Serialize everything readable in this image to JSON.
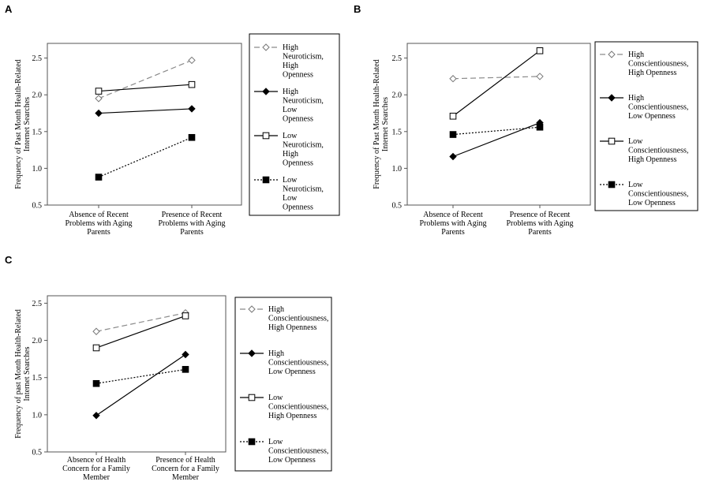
{
  "panels": [
    {
      "letter": "A",
      "y_label_lines": [
        "Frequency of Past Month Health-Related",
        "Internet Searches"
      ],
      "ylim": [
        0.5,
        2.7
      ],
      "ticks": [
        "0.5",
        "1.0",
        "1.5",
        "2.0",
        "2.5"
      ],
      "categories": [
        [
          "Absence of  Recent",
          "Problems with Aging",
          "Parents"
        ],
        [
          "Presence of  Recent",
          "Problems with Aging",
          "Parents"
        ]
      ],
      "series": [
        {
          "style": "hn_ho",
          "legend": [
            "High",
            "Neuroticism,",
            "High",
            "Openness"
          ],
          "values": [
            1.95,
            2.47
          ]
        },
        {
          "style": "hn_lo",
          "legend": [
            "High",
            "Neuroticism,",
            "Low",
            "Openness"
          ],
          "values": [
            1.75,
            1.81
          ]
        },
        {
          "style": "ln_ho",
          "legend": [
            "Low",
            "Neuroticism,",
            "High",
            "Openness"
          ],
          "values": [
            2.05,
            2.14
          ]
        },
        {
          "style": "ln_lo",
          "legend": [
            "Low",
            "Neuroticism,",
            "Low",
            "Openness"
          ],
          "values": [
            0.88,
            1.42
          ]
        }
      ]
    },
    {
      "letter": "B",
      "y_label_lines": [
        "Frequency of Past Month Health-Related",
        "Internet Searches"
      ],
      "ylim": [
        0.5,
        2.7
      ],
      "ticks": [
        "0.5",
        "1.0",
        "1.5",
        "2.0",
        "2.5"
      ],
      "categories": [
        [
          "Absence of  Recent",
          "Problems with Aging",
          "Parents"
        ],
        [
          "Presence of  Recent",
          "Problems with Aging",
          "Parents"
        ]
      ],
      "series": [
        {
          "style": "hn_ho",
          "legend": [
            "High",
            "Conscientiousness,",
            "High Openness"
          ],
          "values": [
            2.22,
            2.25
          ]
        },
        {
          "style": "hn_lo",
          "legend": [
            "High",
            "Conscientiousness,",
            "Low Openness"
          ],
          "values": [
            1.16,
            1.62
          ]
        },
        {
          "style": "ln_ho",
          "legend": [
            "Low",
            "Conscientiousness,",
            "High Openness"
          ],
          "values": [
            1.71,
            2.6
          ]
        },
        {
          "style": "ln_lo",
          "legend": [
            "Low",
            "Conscientiousness,",
            "Low Openness"
          ],
          "values": [
            1.46,
            1.56
          ]
        }
      ]
    },
    {
      "letter": "C",
      "y_label_lines": [
        "Frequency of past Month Health-Related",
        "Internet Searches"
      ],
      "ylim": [
        0.5,
        2.6
      ],
      "ticks": [
        "0.5",
        "1.0",
        "1.5",
        "2.0",
        "2.5"
      ],
      "categories": [
        [
          "Absence of Health",
          "Concern for a Family",
          "Member"
        ],
        [
          "Presence of Health",
          "Concern for a Family",
          "Member"
        ]
      ],
      "series": [
        {
          "style": "hn_ho",
          "legend": [
            "High",
            "Conscientiousness,",
            "High Openness"
          ],
          "values": [
            2.12,
            2.37
          ]
        },
        {
          "style": "hn_lo",
          "legend": [
            "High",
            "Conscientiousness,",
            "Low Openness"
          ],
          "values": [
            0.99,
            1.81
          ]
        },
        {
          "style": "ln_ho",
          "legend": [
            "Low",
            "Conscientiousness,",
            "High Openness"
          ],
          "values": [
            1.9,
            2.33
          ]
        },
        {
          "style": "ln_lo",
          "legend": [
            "Low",
            "Conscientiousness,",
            "Low Openness"
          ],
          "values": [
            1.42,
            1.61
          ]
        }
      ]
    }
  ],
  "chart_data": [
    {
      "type": "line",
      "panel": "A",
      "categories": [
        "Absence of  Recent Problems with Aging Parents",
        "Presence of  Recent Problems with Aging Parents"
      ],
      "ylabel": "Frequency of Past Month Health-Related Internet Searches",
      "ylim": [
        0.5,
        2.7
      ],
      "series": [
        {
          "name": "High Neuroticism, High Openness",
          "values": [
            1.95,
            2.47
          ]
        },
        {
          "name": "High Neuroticism, Low Openness",
          "values": [
            1.75,
            1.81
          ]
        },
        {
          "name": "Low Neuroticism, High Openness",
          "values": [
            2.05,
            2.14
          ]
        },
        {
          "name": "Low Neuroticism, Low Openness",
          "values": [
            0.88,
            1.42
          ]
        }
      ]
    },
    {
      "type": "line",
      "panel": "B",
      "categories": [
        "Absence of  Recent Problems with Aging Parents",
        "Presence of  Recent Problems with Aging Parents"
      ],
      "ylabel": "Frequency of Past Month Health-Related Internet Searches",
      "ylim": [
        0.5,
        2.7
      ],
      "series": [
        {
          "name": "High Conscientiousness, High Openness",
          "values": [
            2.22,
            2.25
          ]
        },
        {
          "name": "High Conscientiousness, Low Openness",
          "values": [
            1.16,
            1.62
          ]
        },
        {
          "name": "Low Conscientiousness, High Openness",
          "values": [
            1.71,
            2.6
          ]
        },
        {
          "name": "Low Conscientiousness, Low Openness",
          "values": [
            1.46,
            1.56
          ]
        }
      ]
    },
    {
      "type": "line",
      "panel": "C",
      "categories": [
        "Absence of Health Concern for a Family Member",
        "Presence of Health Concern for a Family Member"
      ],
      "ylabel": "Frequency of past Month Health-Related Internet Searches",
      "ylim": [
        0.5,
        2.6
      ],
      "series": [
        {
          "name": "High Conscientiousness, High Openness",
          "values": [
            2.12,
            2.37
          ]
        },
        {
          "name": "High Conscientiousness, Low Openness",
          "values": [
            0.99,
            1.81
          ]
        },
        {
          "name": "Low Conscientiousness, High Openness",
          "values": [
            1.9,
            2.33
          ]
        },
        {
          "name": "Low Conscientiousness, Low Openness",
          "values": [
            1.42,
            1.61
          ]
        }
      ]
    }
  ]
}
